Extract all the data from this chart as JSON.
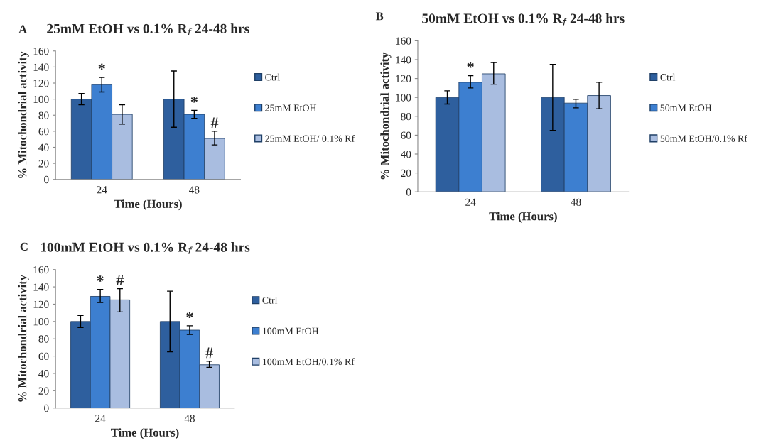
{
  "chart_data": [
    {
      "type": "bar",
      "title": "25mM EtOH vs 0.1% R$_{f}$ 24-48 hrs",
      "xlabel": "Time (Hours)",
      "ylabel": "% Mitochondrial activity",
      "categories": [
        "24",
        "48"
      ],
      "ylim": [
        0,
        160
      ],
      "yticks": [
        0,
        20,
        40,
        60,
        80,
        100,
        120,
        140,
        160
      ],
      "legend": "right",
      "grid": false,
      "series": [
        {
          "name": "Ctrl",
          "color": "#2e5f9e",
          "values": [
            100,
            100
          ],
          "errors": [
            [
              93,
              107
            ],
            [
              65,
              135
            ]
          ]
        },
        {
          "name": "25mM EtOH",
          "color": "#3d7fd0",
          "values": [
            118,
            81
          ],
          "errors": [
            [
              109,
              127
            ],
            [
              76,
              86
            ]
          ]
        },
        {
          "name": "25mM EtOH/ 0.1% Rf",
          "color": "#a9bde0",
          "values": [
            81,
            51
          ],
          "errors": [
            [
              69,
              93
            ],
            [
              43,
              60
            ]
          ]
        }
      ],
      "annotations": [
        "A",
        {
          "text": "*",
          "x": "24",
          "y": 118
        },
        {
          "text": "*",
          "x": "48",
          "y": 81
        },
        "#"
      ]
    },
    {
      "type": "bar",
      "title": "50mM EtOH vs 0.1% R$_{f}$ 24-48 hrs",
      "xlabel": "Time (Hours)",
      "ylabel": "% Mitochondrial activity",
      "categories": [
        "24",
        "48"
      ],
      "ylim": [
        0,
        160
      ],
      "yticks": [
        0,
        20,
        40,
        60,
        80,
        100,
        120,
        140,
        160
      ],
      "legend": "right",
      "grid": false,
      "series": [
        {
          "name": "Ctrl",
          "color": "#2e5f9e",
          "values": [
            100,
            100
          ],
          "errors": [
            [
              93,
              107
            ],
            [
              65,
              135
            ]
          ]
        },
        {
          "name": "50mM EtOH",
          "color": "#3d7fd0",
          "values": [
            116,
            94
          ],
          "errors": [
            [
              110,
              123
            ],
            [
              89,
              98
            ]
          ]
        },
        {
          "name": "50mM EtOH/0.1% Rf",
          "color": "#a9bde0",
          "values": [
            125,
            102
          ],
          "errors": [
            [
              114,
              137
            ],
            [
              88,
              116
            ]
          ]
        }
      ],
      "annotations": [
        "B",
        {
          "text": "*",
          "x": "24",
          "y": 116
        }
      ]
    },
    {
      "type": "bar",
      "title": "100mM EtOH vs 0.1% R$_{f}$ 24-48 hrs",
      "xlabel": "Time (Hours)",
      "ylabel": "% Mitochondrial activity",
      "categories": [
        "24",
        "48"
      ],
      "ylim": [
        0,
        160
      ],
      "yticks": [
        0,
        20,
        40,
        60,
        80,
        100,
        120,
        140,
        160
      ],
      "legend": "right",
      "grid": false,
      "series": [
        {
          "name": "Ctrl",
          "color": "#2e5f9e",
          "values": [
            100,
            100
          ],
          "errors": [
            [
              93,
              107
            ],
            [
              65,
              135
            ]
          ]
        },
        {
          "name": "100mM EtOH",
          "color": "#3d7fd0",
          "values": [
            129,
            90
          ],
          "errors": [
            [
              122,
              137
            ],
            [
              85,
              95
            ]
          ]
        },
        {
          "name": "100mM EtOH/0.1% Rf",
          "color": "#a9bde0",
          "values": [
            125,
            50
          ],
          "errors": [
            [
              111,
              138
            ],
            [
              47,
              54
            ]
          ]
        }
      ],
      "annotations": [
        "C",
        {
          "text": "*",
          "x": "24",
          "y": 129
        },
        {
          "text": "#",
          "x": "24",
          "y": 125
        },
        {
          "text": "*",
          "x": "48",
          "y": 90
        },
        "#"
      ]
    }
  ]
}
